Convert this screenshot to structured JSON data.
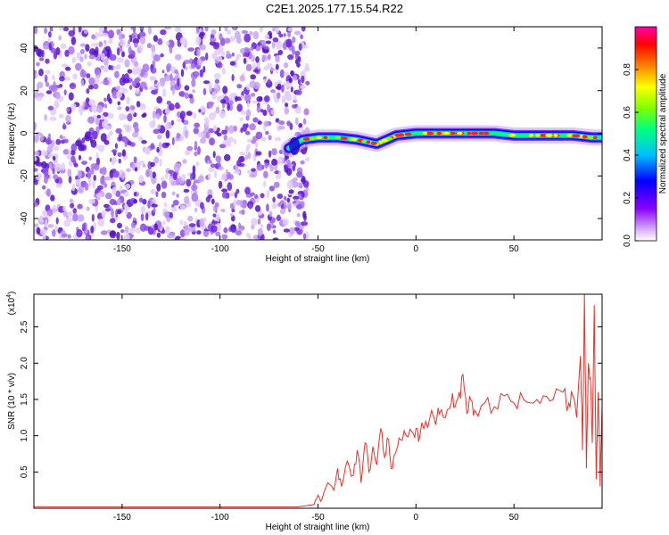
{
  "title": "C2E1.2025.177.15.54.R22",
  "colors": {
    "snr_line": "#e8312a",
    "noise_purple": "#6a1fe0",
    "colormap": [
      "#ffffff",
      "#8b00ff",
      "#0000ff",
      "#00bfff",
      "#00ff7f",
      "#7fff00",
      "#ffff00",
      "#ff7f00",
      "#ff0000",
      "#ff00aa"
    ]
  },
  "chart_data": [
    {
      "type": "heatmap",
      "xlabel": "Height of straight line (km)",
      "ylabel": "Frequency (Hz)",
      "xlim": [
        -195,
        95
      ],
      "ylim": [
        -50,
        50
      ],
      "xticks": [
        -150,
        -100,
        -50,
        0,
        50
      ],
      "xtick_labels": [
        "-150",
        "-100",
        "-50",
        "0",
        "50"
      ],
      "yticks": [
        40,
        20,
        0,
        -20,
        -40
      ],
      "ytick_labels": [
        "40",
        "20",
        "0",
        "-20",
        "-40"
      ],
      "noise_region_x": [
        -195,
        -58
      ],
      "signal_start_x": -58,
      "signal_track": {
        "x": [
          -65,
          -58,
          -50,
          -40,
          -30,
          -20,
          -15,
          -10,
          0,
          10,
          20,
          30,
          40,
          50,
          60,
          70,
          80,
          90,
          95
        ],
        "freq": [
          -7,
          -3,
          -2,
          -2,
          -3,
          -5,
          -3,
          -1,
          0,
          0,
          0,
          0,
          0,
          -1,
          -1,
          -1,
          -1,
          -2,
          -2
        ]
      },
      "colorbar": {
        "label": "Normalized spectral amplitude",
        "range": [
          0.0,
          1.0
        ],
        "tick_labels": [
          "0.0",
          "0.2",
          "0.4",
          "0.6",
          "0.8"
        ],
        "ticks": [
          0.0,
          0.2,
          0.4,
          0.6,
          0.8
        ]
      }
    },
    {
      "type": "line",
      "xlabel": "Height of straight line (km)",
      "ylabel": "SNR (10 * v/v)",
      "scale_label": "(x10",
      "scale_exponent": "4",
      "scale_suffix": ")",
      "xlim": [
        -195,
        95
      ],
      "ylim": [
        0,
        2.95
      ],
      "xticks": [
        -150,
        -100,
        -50,
        0,
        50
      ],
      "xtick_labels": [
        "-150",
        "-100",
        "-50",
        "0",
        "50"
      ],
      "yticks": [
        0.5,
        1.0,
        1.5,
        2.0,
        2.5
      ],
      "ytick_labels": [
        "0.5",
        "1.0",
        "1.5",
        "2.0",
        "2.5"
      ],
      "series": [
        {
          "x": [
            -195,
            -150,
            -100,
            -60,
            -52,
            -50,
            -48,
            -45,
            -42,
            -40,
            -38,
            -35,
            -32,
            -30,
            -28,
            -26,
            -24,
            -22,
            -20,
            -18,
            -16,
            -14,
            -12,
            -10,
            -8,
            -5,
            -2,
            0,
            2,
            5,
            8,
            10,
            12,
            15,
            18,
            20,
            22,
            24,
            26,
            28,
            30,
            35,
            40,
            45,
            50,
            55,
            60,
            65,
            70,
            75,
            78,
            80,
            82,
            84,
            85,
            86,
            87,
            88,
            89,
            90,
            91,
            92,
            93,
            94,
            95
          ],
          "y": [
            0.02,
            0.02,
            0.02,
            0.02,
            0.05,
            0.18,
            0.12,
            0.35,
            0.25,
            0.55,
            0.3,
            0.65,
            0.45,
            0.8,
            0.35,
            0.9,
            0.5,
            0.85,
            0.6,
            1.1,
            0.7,
            0.95,
            0.55,
            0.8,
            0.95,
            1.0,
            1.05,
            1.1,
            1.0,
            1.2,
            1.35,
            1.15,
            1.3,
            1.25,
            1.45,
            1.4,
            1.6,
            1.85,
            1.3,
            1.5,
            1.35,
            1.45,
            1.4,
            1.55,
            1.45,
            1.5,
            1.45,
            1.55,
            1.5,
            1.6,
            1.45,
            1.55,
            1.25,
            2.1,
            0.8,
            2.95,
            0.55,
            2.0,
            1.8,
            0.9,
            2.8,
            0.4,
            1.6,
            0.3,
            1.4
          ]
        }
      ]
    }
  ]
}
